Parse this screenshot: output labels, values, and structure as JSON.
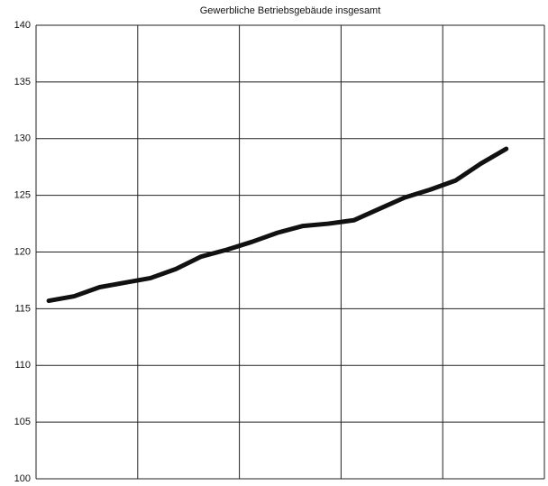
{
  "chart_data": {
    "type": "line",
    "title": "Gewerbliche Betriebsgebäude insgesamt",
    "x": [
      0.5,
      1.5,
      2.5,
      3.5,
      4.5,
      5.5,
      6.5,
      7.5,
      8.5,
      9.5,
      10.5,
      11.5,
      12.5,
      13.5,
      14.5,
      15.5,
      16.5,
      17.5,
      18.5
    ],
    "series": [
      {
        "color": "#111111",
        "values": [
          115.7,
          116.1,
          116.9,
          117.3,
          117.7,
          118.5,
          119.6,
          120.2,
          120.9,
          121.7,
          122.3,
          122.5,
          122.8,
          123.8,
          124.8,
          125.5,
          126.3,
          127.8,
          129.1
        ]
      }
    ],
    "xlim": [
      0,
      20
    ],
    "xticks": [
      0,
      4,
      8,
      12,
      16,
      20
    ],
    "ylim": [
      100,
      140
    ],
    "yticks": [
      100,
      105,
      110,
      115,
      120,
      125,
      130,
      135,
      140
    ],
    "grid": true
  }
}
